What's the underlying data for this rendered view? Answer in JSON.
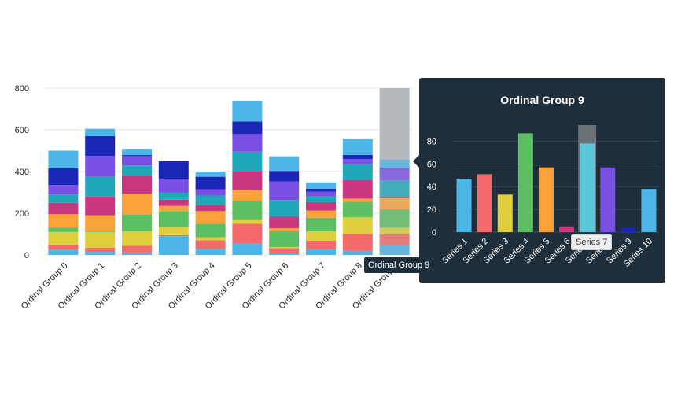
{
  "chart_data": {
    "type": "bar",
    "stacked": true,
    "categories": [
      "Ordinal Group 0",
      "Ordinal Group 1",
      "Ordinal Group 2",
      "Ordinal Group 3",
      "Ordinal Group 4",
      "Ordinal Group 5",
      "Ordinal Group 6",
      "Ordinal Group 7",
      "Ordinal Group 8",
      "Ordinal Group 9"
    ],
    "ylim": [
      0,
      800
    ],
    "yticks": [
      0,
      200,
      400,
      600,
      800
    ],
    "grid": true,
    "series": [
      {
        "name": "Series 1",
        "color": "#4db6e8",
        "values": [
          25,
          15,
          12,
          90,
          30,
          55,
          8,
          28,
          20,
          47
        ]
      },
      {
        "name": "Series 2",
        "color": "#f46a6a",
        "values": [
          25,
          20,
          32,
          5,
          40,
          95,
          25,
          40,
          80,
          51
        ]
      },
      {
        "name": "Series 3",
        "color": "#e0cf3c",
        "values": [
          60,
          75,
          70,
          40,
          15,
          20,
          5,
          45,
          80,
          33
        ]
      },
      {
        "name": "Series 4",
        "color": "#5cbf61",
        "values": [
          20,
          5,
          80,
          75,
          65,
          90,
          75,
          65,
          75,
          87
        ]
      },
      {
        "name": "Series 5",
        "color": "#f9a23a",
        "values": [
          65,
          75,
          100,
          25,
          60,
          50,
          15,
          35,
          15,
          57
        ]
      },
      {
        "name": "Series 6",
        "color": "#c8377f",
        "values": [
          55,
          90,
          85,
          30,
          30,
          90,
          55,
          40,
          90,
          5
        ]
      },
      {
        "name": "Series 7",
        "color": "#1fa8b8",
        "values": [
          40,
          95,
          50,
          35,
          45,
          95,
          80,
          30,
          75,
          78
        ]
      },
      {
        "name": "Series 8",
        "color": "#7a4fe4",
        "values": [
          45,
          100,
          45,
          65,
          30,
          85,
          90,
          20,
          25,
          57
        ]
      },
      {
        "name": "Series 9",
        "color": "#1b25b8",
        "values": [
          80,
          95,
          5,
          85,
          60,
          60,
          50,
          15,
          20,
          4
        ]
      },
      {
        "name": "Series 10",
        "color": "#4db6e8",
        "values": [
          85,
          35,
          30,
          0,
          25,
          100,
          70,
          30,
          75,
          38
        ]
      }
    ],
    "highlight_category": "Ordinal Group 9",
    "tooltip": {
      "title": "Ordinal Group 9",
      "type": "bar",
      "categories": [
        "Series 1",
        "Series 2",
        "Series 3",
        "Series 4",
        "Series 5",
        "Series 6",
        "Series 7",
        "Series 8",
        "Series 9",
        "Series 10"
      ],
      "values": [
        47,
        51,
        33,
        87,
        57,
        5,
        78,
        57,
        4,
        38
      ],
      "ylim": [
        0,
        90
      ],
      "yticks": [
        0,
        20,
        40,
        60,
        80
      ],
      "hovered": "Series 7"
    }
  },
  "hover": {
    "category_label": "Ordinal Group 9",
    "series_label": "Series 7"
  }
}
